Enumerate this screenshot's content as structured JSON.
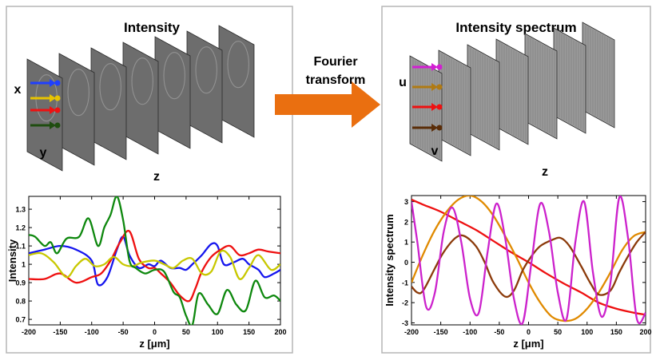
{
  "left_panel": {
    "title": "Intensity",
    "axis_x": "x",
    "axis_y": "y",
    "axis_z": "z",
    "arrow_colors": [
      "#1f3fff",
      "#e8c400",
      "#ee1111",
      "#1f4d10"
    ]
  },
  "middle": {
    "label_line1": "Fourier",
    "label_line2": "transform",
    "arrow_color": "#ea6f10"
  },
  "right_panel": {
    "title": "Intensity spectrum",
    "axis_u": "u",
    "axis_v": "v",
    "axis_z": "z",
    "arrow_colors": [
      "#d21fd2",
      "#b07a14",
      "#ee1111",
      "#5a2d08"
    ]
  },
  "chart_data": [
    {
      "type": "line",
      "xlabel": "z [μm]",
      "ylabel": "Intensity",
      "xlim": [
        -200,
        200
      ],
      "ylim": [
        0.67,
        1.37
      ],
      "xticks": [
        -200,
        -150,
        -100,
        -50,
        0,
        50,
        100,
        150,
        200
      ],
      "yticks": [
        0.7,
        0.8,
        0.9,
        1,
        1.1,
        1.2,
        1.3
      ],
      "ytick_labels": [
        "0.7",
        "0.8",
        "0.9",
        "1",
        "1.1",
        "1.2",
        "1.3"
      ],
      "series": [
        {
          "color": "#1515ee",
          "x": [
            -200,
            -175,
            -150,
            -125,
            -100,
            -90,
            -75,
            -60,
            -50,
            -40,
            -25,
            -10,
            0,
            10,
            25,
            40,
            50,
            60,
            75,
            90,
            100,
            110,
            125,
            140,
            150,
            165,
            175,
            190,
            200
          ],
          "y": [
            1.06,
            1.08,
            1.1,
            1.08,
            1.02,
            0.89,
            0.93,
            1.08,
            1.15,
            1.05,
            0.98,
            1.0,
            0.99,
            1.02,
            0.98,
            0.98,
            0.97,
            1.0,
            1.05,
            1.11,
            1.1,
            1.0,
            1.01,
            1.03,
            1.0,
            0.97,
            0.93,
            0.95,
            0.97
          ]
        },
        {
          "color": "#ee1010",
          "x": [
            -200,
            -175,
            -150,
            -125,
            -100,
            -85,
            -70,
            -55,
            -40,
            -25,
            -10,
            0,
            10,
            25,
            40,
            55,
            65,
            75,
            90,
            105,
            120,
            135,
            150,
            165,
            180,
            200
          ],
          "y": [
            0.92,
            0.92,
            0.95,
            0.9,
            0.93,
            0.95,
            1.02,
            1.12,
            1.18,
            1.03,
            0.98,
            0.98,
            0.95,
            0.9,
            0.83,
            0.8,
            0.87,
            0.96,
            1.04,
            1.08,
            1.1,
            1.05,
            1.06,
            1.08,
            1.07,
            1.06
          ]
        },
        {
          "color": "#c8c800",
          "x": [
            -200,
            -180,
            -160,
            -140,
            -125,
            -110,
            -95,
            -80,
            -65,
            -50,
            -35,
            -20,
            0,
            15,
            30,
            45,
            60,
            75,
            90,
            105,
            120,
            135,
            150,
            165,
            185,
            200
          ],
          "y": [
            1.05,
            1.06,
            1.01,
            0.93,
            0.99,
            1.03,
            0.99,
            1.0,
            1.04,
            1.0,
            0.99,
            1.01,
            1.02,
            1.0,
            0.98,
            1.02,
            1.03,
            0.95,
            0.96,
            1.07,
            1.04,
            0.92,
            0.98,
            1.05,
            0.97,
            1.0
          ]
        },
        {
          "color": "#0e880e",
          "x": [
            -200,
            -190,
            -175,
            -165,
            -155,
            -140,
            -120,
            -105,
            -90,
            -80,
            -70,
            -60,
            -50,
            -40,
            -30,
            -15,
            0,
            15,
            30,
            40,
            50,
            60,
            70,
            85,
            100,
            115,
            130,
            145,
            160,
            175,
            190,
            200
          ],
          "y": [
            1.16,
            1.15,
            1.1,
            1.12,
            1.06,
            1.14,
            1.15,
            1.25,
            1.1,
            1.2,
            1.27,
            1.37,
            1.24,
            1.02,
            0.98,
            0.95,
            0.97,
            0.96,
            0.85,
            0.82,
            0.72,
            0.67,
            0.84,
            0.78,
            0.73,
            0.86,
            0.78,
            0.75,
            0.91,
            0.82,
            0.83,
            0.8
          ]
        }
      ]
    },
    {
      "type": "line",
      "xlabel": "z [μm]",
      "ylabel": "Intensity spectrum",
      "xlim": [
        -200,
        200
      ],
      "ylim": [
        -3.1,
        3.3
      ],
      "xticks": [
        -200,
        -150,
        -100,
        -50,
        0,
        50,
        100,
        150,
        200
      ],
      "yticks": [
        -3,
        -2,
        -1,
        0,
        1,
        2,
        3
      ],
      "ytick_labels": [
        "-3",
        "-2",
        "-1",
        "0",
        "1",
        "2",
        "3"
      ],
      "series": [
        {
          "color": "#ee1010",
          "x": [
            -200,
            -180,
            -150,
            -120,
            -90,
            -60,
            -30,
            0,
            30,
            60,
            90,
            120,
            150,
            180,
            200
          ],
          "y": [
            3.1,
            2.85,
            2.5,
            2.05,
            1.6,
            1.05,
            0.5,
            0.0,
            -0.55,
            -1.05,
            -1.5,
            -2.0,
            -2.3,
            -2.5,
            -2.6
          ]
        },
        {
          "color": "#e08a00",
          "x": [
            -200,
            -180,
            -160,
            -140,
            -120,
            -100,
            -80,
            -60,
            -40,
            -20,
            0,
            20,
            40,
            60,
            80,
            100,
            120,
            140,
            160,
            180,
            200
          ],
          "y": [
            -1.0,
            0.4,
            1.6,
            2.5,
            3.1,
            3.3,
            3.0,
            2.3,
            1.3,
            0.2,
            -1.0,
            -2.0,
            -2.7,
            -2.9,
            -2.8,
            -2.3,
            -1.5,
            -0.5,
            0.6,
            1.3,
            1.5
          ]
        },
        {
          "color": "#8b3a0a",
          "x": [
            -200,
            -190,
            -180,
            -160,
            -145,
            -125,
            -110,
            -90,
            -75,
            -60,
            -40,
            -25,
            -10,
            5,
            20,
            40,
            55,
            70,
            90,
            105,
            120,
            140,
            155,
            170,
            185,
            200
          ],
          "y": [
            -1.2,
            -1.5,
            -1.4,
            -0.3,
            0.5,
            1.2,
            1.3,
            0.8,
            0.0,
            -1.0,
            -1.7,
            -1.4,
            -0.4,
            0.3,
            0.8,
            1.1,
            1.2,
            0.8,
            -0.2,
            -1.0,
            -1.6,
            -1.4,
            -0.5,
            0.3,
            1.0,
            1.5
          ]
        },
        {
          "color": "#cc22cc",
          "x": [
            -200,
            -190,
            -175,
            -160,
            -145,
            -130,
            -115,
            -100,
            -85,
            -70,
            -55,
            -40,
            -25,
            -10,
            5,
            20,
            35,
            50,
            65,
            80,
            95,
            110,
            125,
            140,
            155,
            170,
            185,
            200
          ],
          "y": [
            3.0,
            1.0,
            -2.2,
            -1.5,
            1.5,
            2.7,
            1.0,
            -1.8,
            -2.5,
            0.5,
            2.9,
            1.2,
            -1.8,
            -3.0,
            0.0,
            2.9,
            1.5,
            -1.5,
            -2.8,
            1.0,
            3.0,
            -0.5,
            -2.7,
            -1.0,
            3.2,
            1.2,
            -2.8,
            -2.5
          ]
        }
      ]
    }
  ]
}
